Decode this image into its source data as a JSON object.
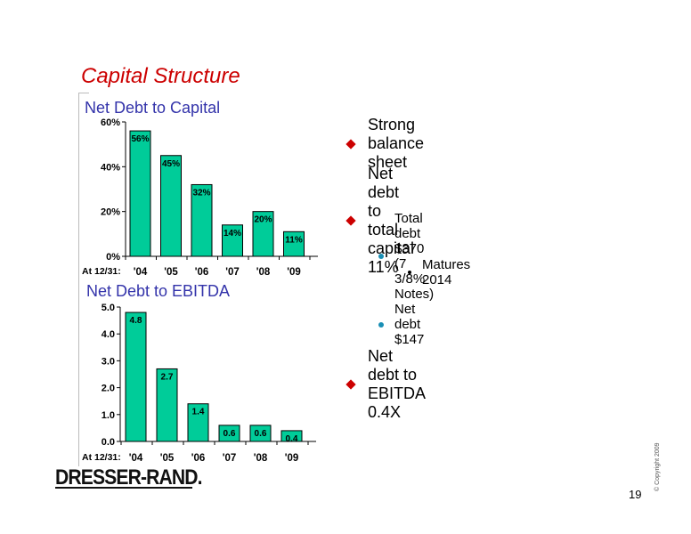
{
  "slide": {
    "title": "Capital Structure",
    "page_number": "19",
    "copyright": "© Copyright 2009",
    "logo_text": "DRESSER-RAND."
  },
  "bullets": [
    {
      "level": 1,
      "text": "Strong balance sheet"
    },
    {
      "level": 1,
      "text": "Net debt to total capital 11%"
    },
    {
      "level": 2,
      "text": "Total debt $370 (7 3/8% Notes)"
    },
    {
      "level": 3,
      "text": "Matures 2014"
    },
    {
      "level": 2,
      "text": "Net debt $147"
    },
    {
      "level": 1,
      "text": "Net debt to EBITDA 0.4X"
    }
  ],
  "colors": {
    "title": "#cc0000",
    "chart_title": "#3333aa",
    "bar_fill": "#00cc99",
    "bullet_diamond": "#cc0000",
    "bullet_dot": "#1a8fb5"
  },
  "chart_data": [
    {
      "type": "bar",
      "title": "Net Debt to Capital",
      "category_prefix": "At 12/31:",
      "categories": [
        "'04",
        "'05",
        "'06",
        "'07",
        "'08",
        "'09"
      ],
      "values": [
        56,
        45,
        32,
        14,
        20,
        11
      ],
      "data_labels": [
        "56%",
        "45%",
        "32%",
        "14%",
        "20%",
        "11%"
      ],
      "ylim": [
        0,
        60
      ],
      "yticks": [
        "0%",
        "20%",
        "40%",
        "60%"
      ],
      "ytick_values": [
        0,
        20,
        40,
        60
      ]
    },
    {
      "type": "bar",
      "title": "Net Debt to EBITDA",
      "category_prefix": "At 12/31:",
      "categories": [
        "'04",
        "'05",
        "'06",
        "'07",
        "'08",
        "'09"
      ],
      "values": [
        4.8,
        2.7,
        1.4,
        0.6,
        0.6,
        0.4
      ],
      "data_labels": [
        "4.8",
        "2.7",
        "1.4",
        "0.6",
        "0.6",
        "0.4"
      ],
      "ylim": [
        0,
        5
      ],
      "yticks": [
        "0.0",
        "1.0",
        "2.0",
        "3.0",
        "4.0",
        "5.0"
      ],
      "ytick_values": [
        0,
        1,
        2,
        3,
        4,
        5
      ]
    }
  ]
}
